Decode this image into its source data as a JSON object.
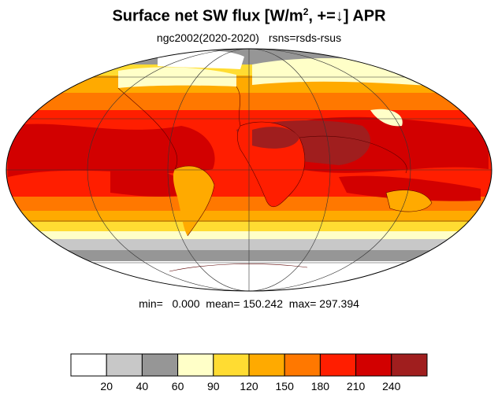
{
  "title": {
    "main": "Surface net SW flux [W/m",
    "sup": "2",
    "rest": ", +=↓]  APR"
  },
  "subtitle": {
    "left": "ngc2002(2020-2020)",
    "right": "rsns=rsds-rsus"
  },
  "stats": {
    "text": "min=   0.000  mean= 150.242  max= 297.394"
  },
  "colorbar": {
    "colors": [
      "#ffffff",
      "#c8c8c8",
      "#969696",
      "#ffffc8",
      "#ffdc32",
      "#ffaa00",
      "#ff7800",
      "#ff1e00",
      "#d20000",
      "#a01e1e"
    ],
    "labels": [
      "20",
      "40",
      "60",
      "90",
      "120",
      "150",
      "180",
      "210",
      "240"
    ]
  }
}
